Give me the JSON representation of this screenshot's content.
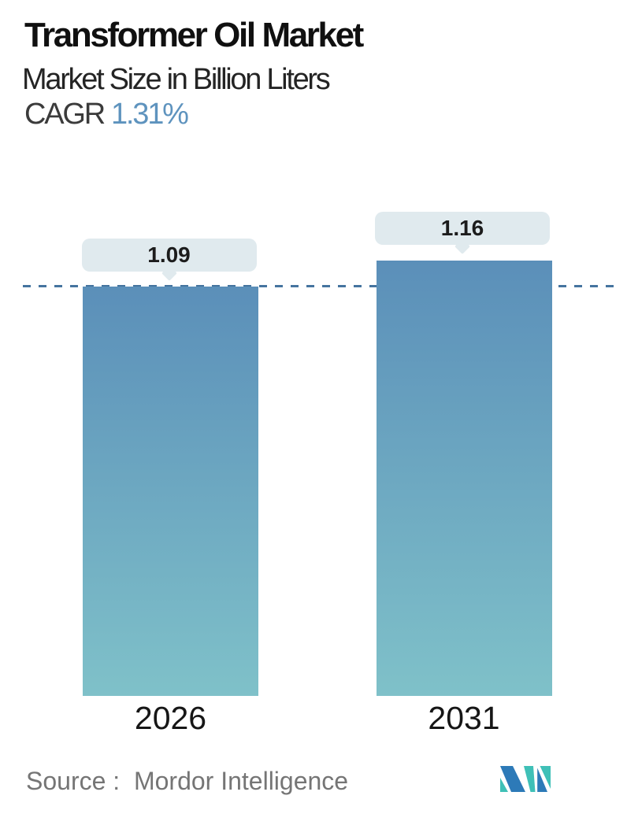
{
  "header": {
    "title": "Transformer Oil Market",
    "subtitle": "Market Size in Billion Liters",
    "cagr_label": "CAGR",
    "cagr_value": "1.31%"
  },
  "chart_data": {
    "type": "bar",
    "title": "Transformer Oil Market",
    "subtitle": "Market Size in Billion Liters",
    "cagr": "1.31%",
    "categories": [
      "2026",
      "2031"
    ],
    "values": [
      1.09,
      1.16
    ],
    "value_labels": [
      "1.09",
      "1.16"
    ],
    "ylabel": "Market Size in Billion Liters",
    "xlabel": "",
    "ylim": [
      0,
      1.85
    ],
    "grid": "off",
    "legend": "none",
    "reference_line": {
      "value": 1.09,
      "style": "dashed",
      "color": "#45749f"
    },
    "bar_gradient_top": "#5b8fb9",
    "bar_gradient_bottom": "#7fc1c9",
    "callout_bg": "#e0eaee"
  },
  "footer": {
    "source_label": "Source :  Mordor Intelligence",
    "logo_name": "mordor-intelligence-logo",
    "logo_colors": {
      "blue": "#2d7ab8",
      "teal": "#3fc0b7"
    }
  }
}
